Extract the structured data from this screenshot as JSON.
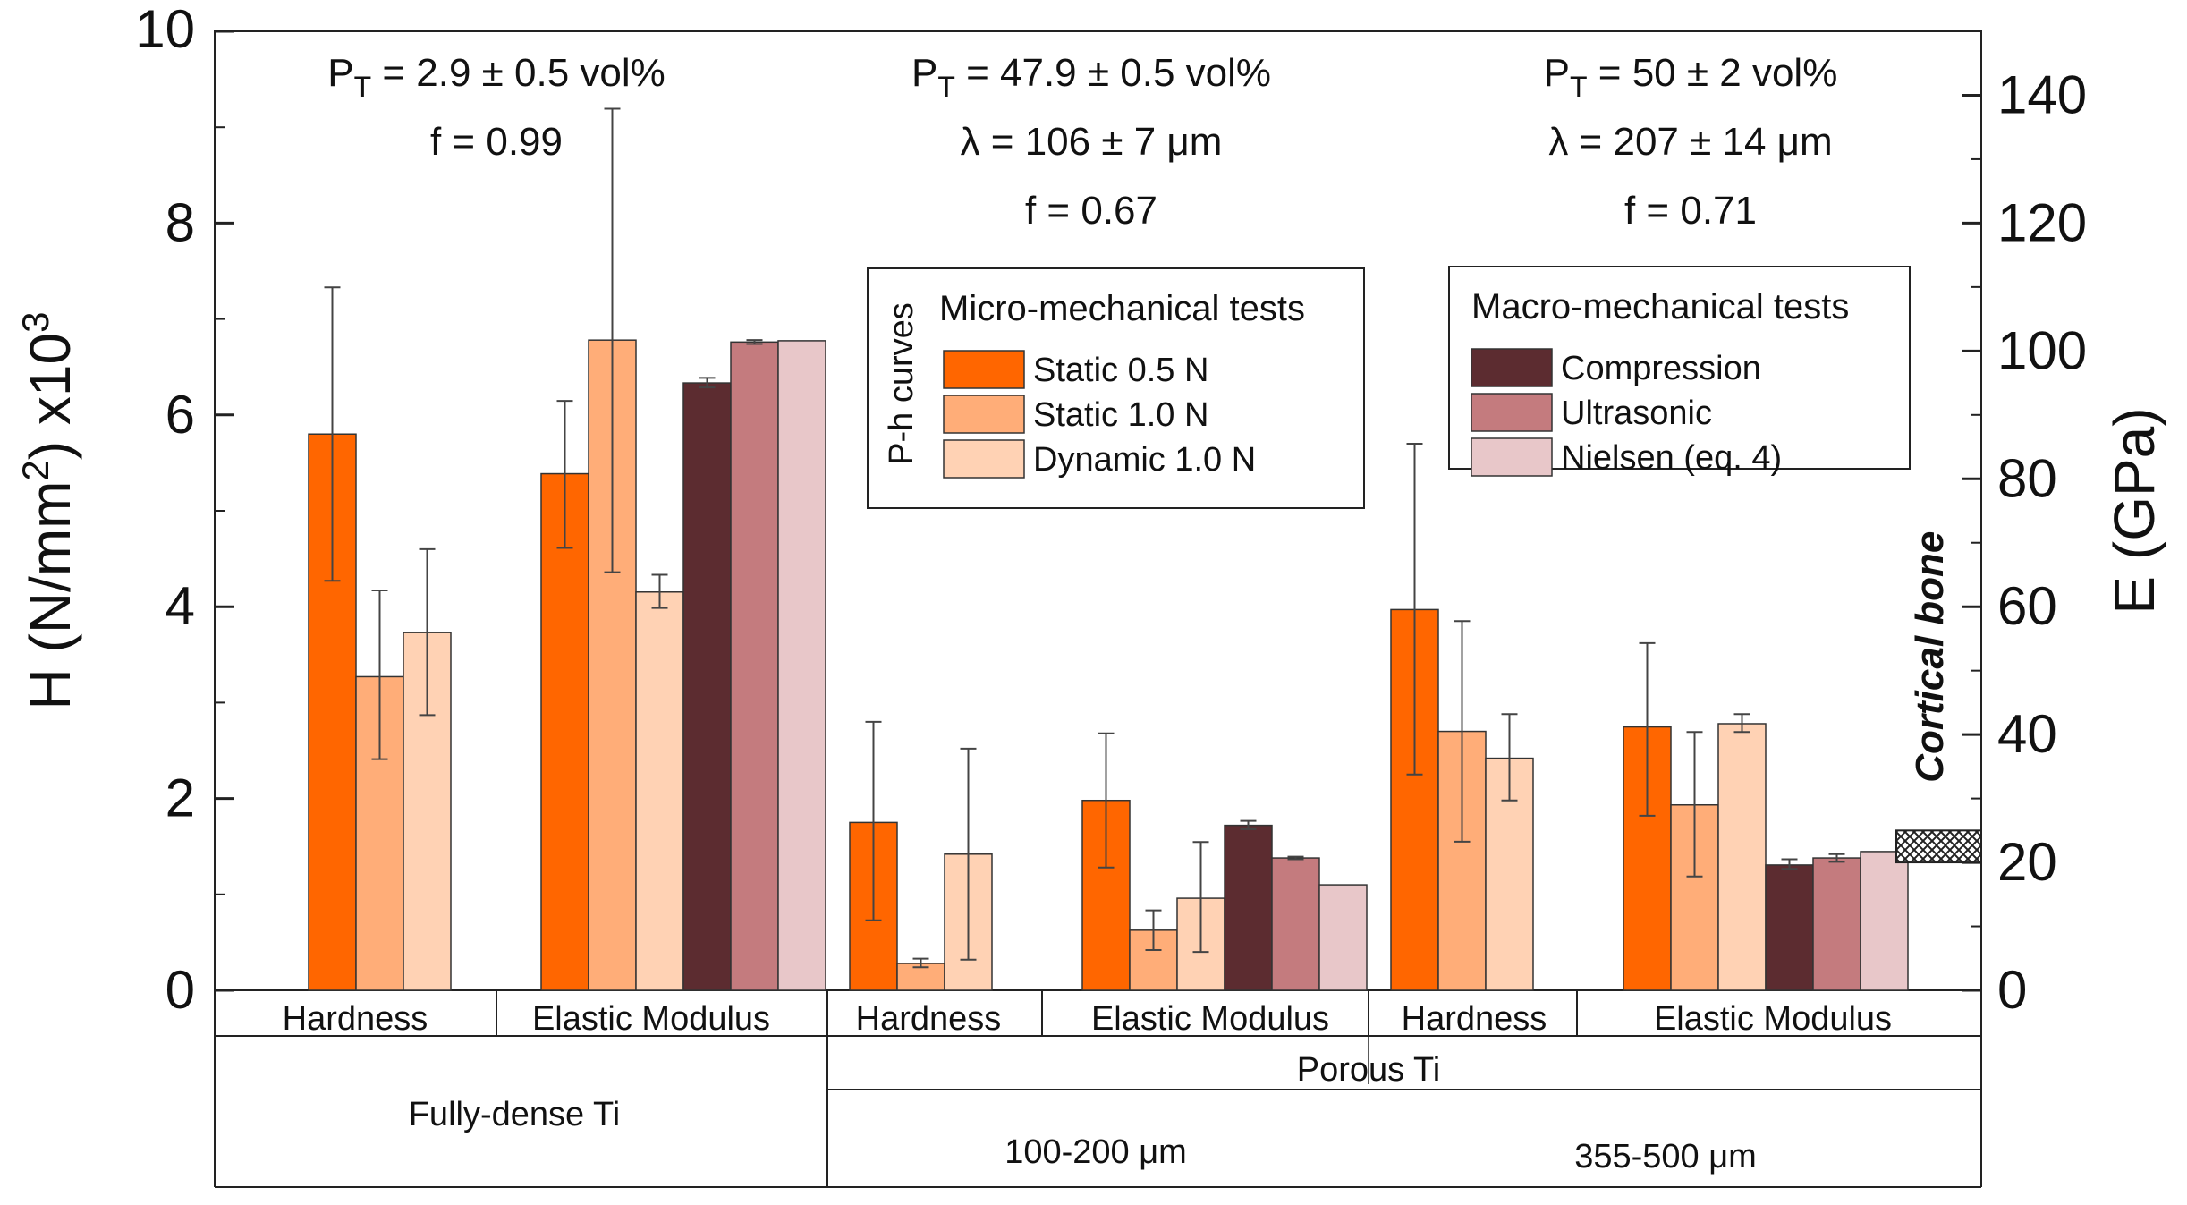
{
  "chart_data": {
    "type": "bar",
    "left_axis": {
      "title_parts": [
        "H (N/mm",
        "2",
        ") x10",
        "3"
      ],
      "range": [
        0,
        10
      ],
      "ticks": [
        "0",
        "2",
        "4",
        "6",
        "8",
        "10"
      ]
    },
    "right_axis": {
      "title": "E (GPa)",
      "range": [
        0,
        150
      ],
      "ticks": [
        "0",
        "20",
        "40",
        "60",
        "80",
        "100",
        "120",
        "140"
      ]
    },
    "annotations": [
      {
        "lines": [
          [
            "P",
            "T",
            " = 2.9 ",
            "±",
            " 0.5 vol%"
          ],
          [
            "",
            "",
            "f = 0.99",
            "",
            ""
          ]
        ]
      },
      {
        "lines": [
          [
            "P",
            "T",
            " = 47.9 ",
            "±",
            " 0.5 vol%"
          ],
          [
            "",
            "",
            "λ = 106 ",
            "±",
            " 7 μm"
          ],
          [
            "",
            "",
            "f = 0.67",
            "",
            ""
          ]
        ]
      },
      {
        "lines": [
          [
            "P",
            "T",
            " = 50 ",
            "±",
            " 2 vol%"
          ],
          [
            "",
            "",
            "λ = 207 ",
            "±",
            " 14 μm"
          ],
          [
            "",
            "",
            "f = 0.71",
            "",
            ""
          ]
        ]
      }
    ],
    "series": [
      {
        "name": "Static 0.5 N",
        "color": "#ff6600"
      },
      {
        "name": "Static 1.0 N",
        "color": "#ffad78"
      },
      {
        "name": "Dynamic 1.0 N",
        "color": "#ffd2b4"
      },
      {
        "name": "Compression",
        "color": "#5c2c30"
      },
      {
        "name": "Ultrasonic",
        "color": "#c47b7e"
      },
      {
        "name": "Nielsen (eq. 4)",
        "color": "#e8c7c9"
      }
    ],
    "legend_micro": {
      "title": "Micro-mechanical tests",
      "side_label": "P-h curves",
      "series": [
        0,
        1,
        2
      ]
    },
    "legend_macro": {
      "title": "Macro-mechanical tests",
      "series": [
        3,
        4,
        5
      ]
    },
    "groups": [
      {
        "label": "Hardness",
        "axis": "H",
        "bars": [
          {
            "series": 0,
            "value": 5.8,
            "err_low": 4.27,
            "err_high": 7.33
          },
          {
            "series": 1,
            "value": 3.27,
            "err_low": 2.41,
            "err_high": 4.17
          },
          {
            "series": 2,
            "value": 3.73,
            "err_low": 2.87,
            "err_high": 4.6
          }
        ]
      },
      {
        "label": "Elastic Modulus",
        "axis": "E",
        "bars": [
          {
            "series": 0,
            "value": 80.8,
            "err_low": 69.2,
            "err_high": 92.2
          },
          {
            "series": 1,
            "value": 101.7,
            "err_low": 65.4,
            "err_high": 137.9
          },
          {
            "series": 2,
            "value": 62.3,
            "err_low": 59.8,
            "err_high": 65.0
          },
          {
            "series": 3,
            "value": 95.0,
            "err_low": 94.3,
            "err_high": 95.8
          },
          {
            "series": 4,
            "value": 101.4,
            "err_low": 101.1,
            "err_high": 101.7
          },
          {
            "series": 5,
            "value": 101.6
          }
        ]
      },
      {
        "label": "Hardness",
        "axis": "H",
        "bars": [
          {
            "series": 0,
            "value": 1.75,
            "err_low": 0.73,
            "err_high": 2.8
          },
          {
            "series": 1,
            "value": 0.28,
            "err_low": 0.24,
            "err_high": 0.33
          },
          {
            "series": 2,
            "value": 1.42,
            "err_low": 0.32,
            "err_high": 2.52
          }
        ]
      },
      {
        "label": "Elastic Modulus",
        "axis": "E",
        "bars": [
          {
            "series": 0,
            "value": 29.7,
            "err_low": 19.2,
            "err_high": 40.2
          },
          {
            "series": 1,
            "value": 9.4,
            "err_low": 6.3,
            "err_high": 12.5
          },
          {
            "series": 2,
            "value": 14.4,
            "err_low": 6.0,
            "err_high": 23.2
          },
          {
            "series": 3,
            "value": 25.8,
            "err_low": 25.2,
            "err_high": 26.5
          },
          {
            "series": 4,
            "value": 20.7,
            "err_low": 20.5,
            "err_high": 20.9
          },
          {
            "series": 5,
            "value": 16.5
          }
        ]
      },
      {
        "label": "Hardness",
        "axis": "H",
        "bars": [
          {
            "series": 0,
            "value": 3.97,
            "err_low": 2.25,
            "err_high": 5.7
          },
          {
            "series": 1,
            "value": 2.7,
            "err_low": 1.55,
            "err_high": 3.85
          },
          {
            "series": 2,
            "value": 2.42,
            "err_low": 1.98,
            "err_high": 2.88
          }
        ]
      },
      {
        "label": "Elastic Modulus",
        "axis": "E",
        "bars": [
          {
            "series": 0,
            "value": 41.2,
            "err_low": 27.3,
            "err_high": 54.3
          },
          {
            "series": 1,
            "value": 29.0,
            "err_low": 17.8,
            "err_high": 40.4
          },
          {
            "series": 2,
            "value": 41.7,
            "err_low": 40.4,
            "err_high": 43.2
          },
          {
            "series": 3,
            "value": 19.6,
            "err_low": 19.0,
            "err_high": 20.5
          },
          {
            "series": 4,
            "value": 20.7,
            "err_low": 20.1,
            "err_high": 21.3
          },
          {
            "series": 5,
            "value": 21.7
          }
        ]
      }
    ],
    "cortical_bone": {
      "label": "Cortical bone",
      "range": [
        20,
        25
      ]
    },
    "category_rows": {
      "porous": "Porous Ti",
      "fully_dense": "Fully-dense Ti",
      "size_1": "100-200 μm",
      "size_2": "355-500 μm"
    }
  }
}
